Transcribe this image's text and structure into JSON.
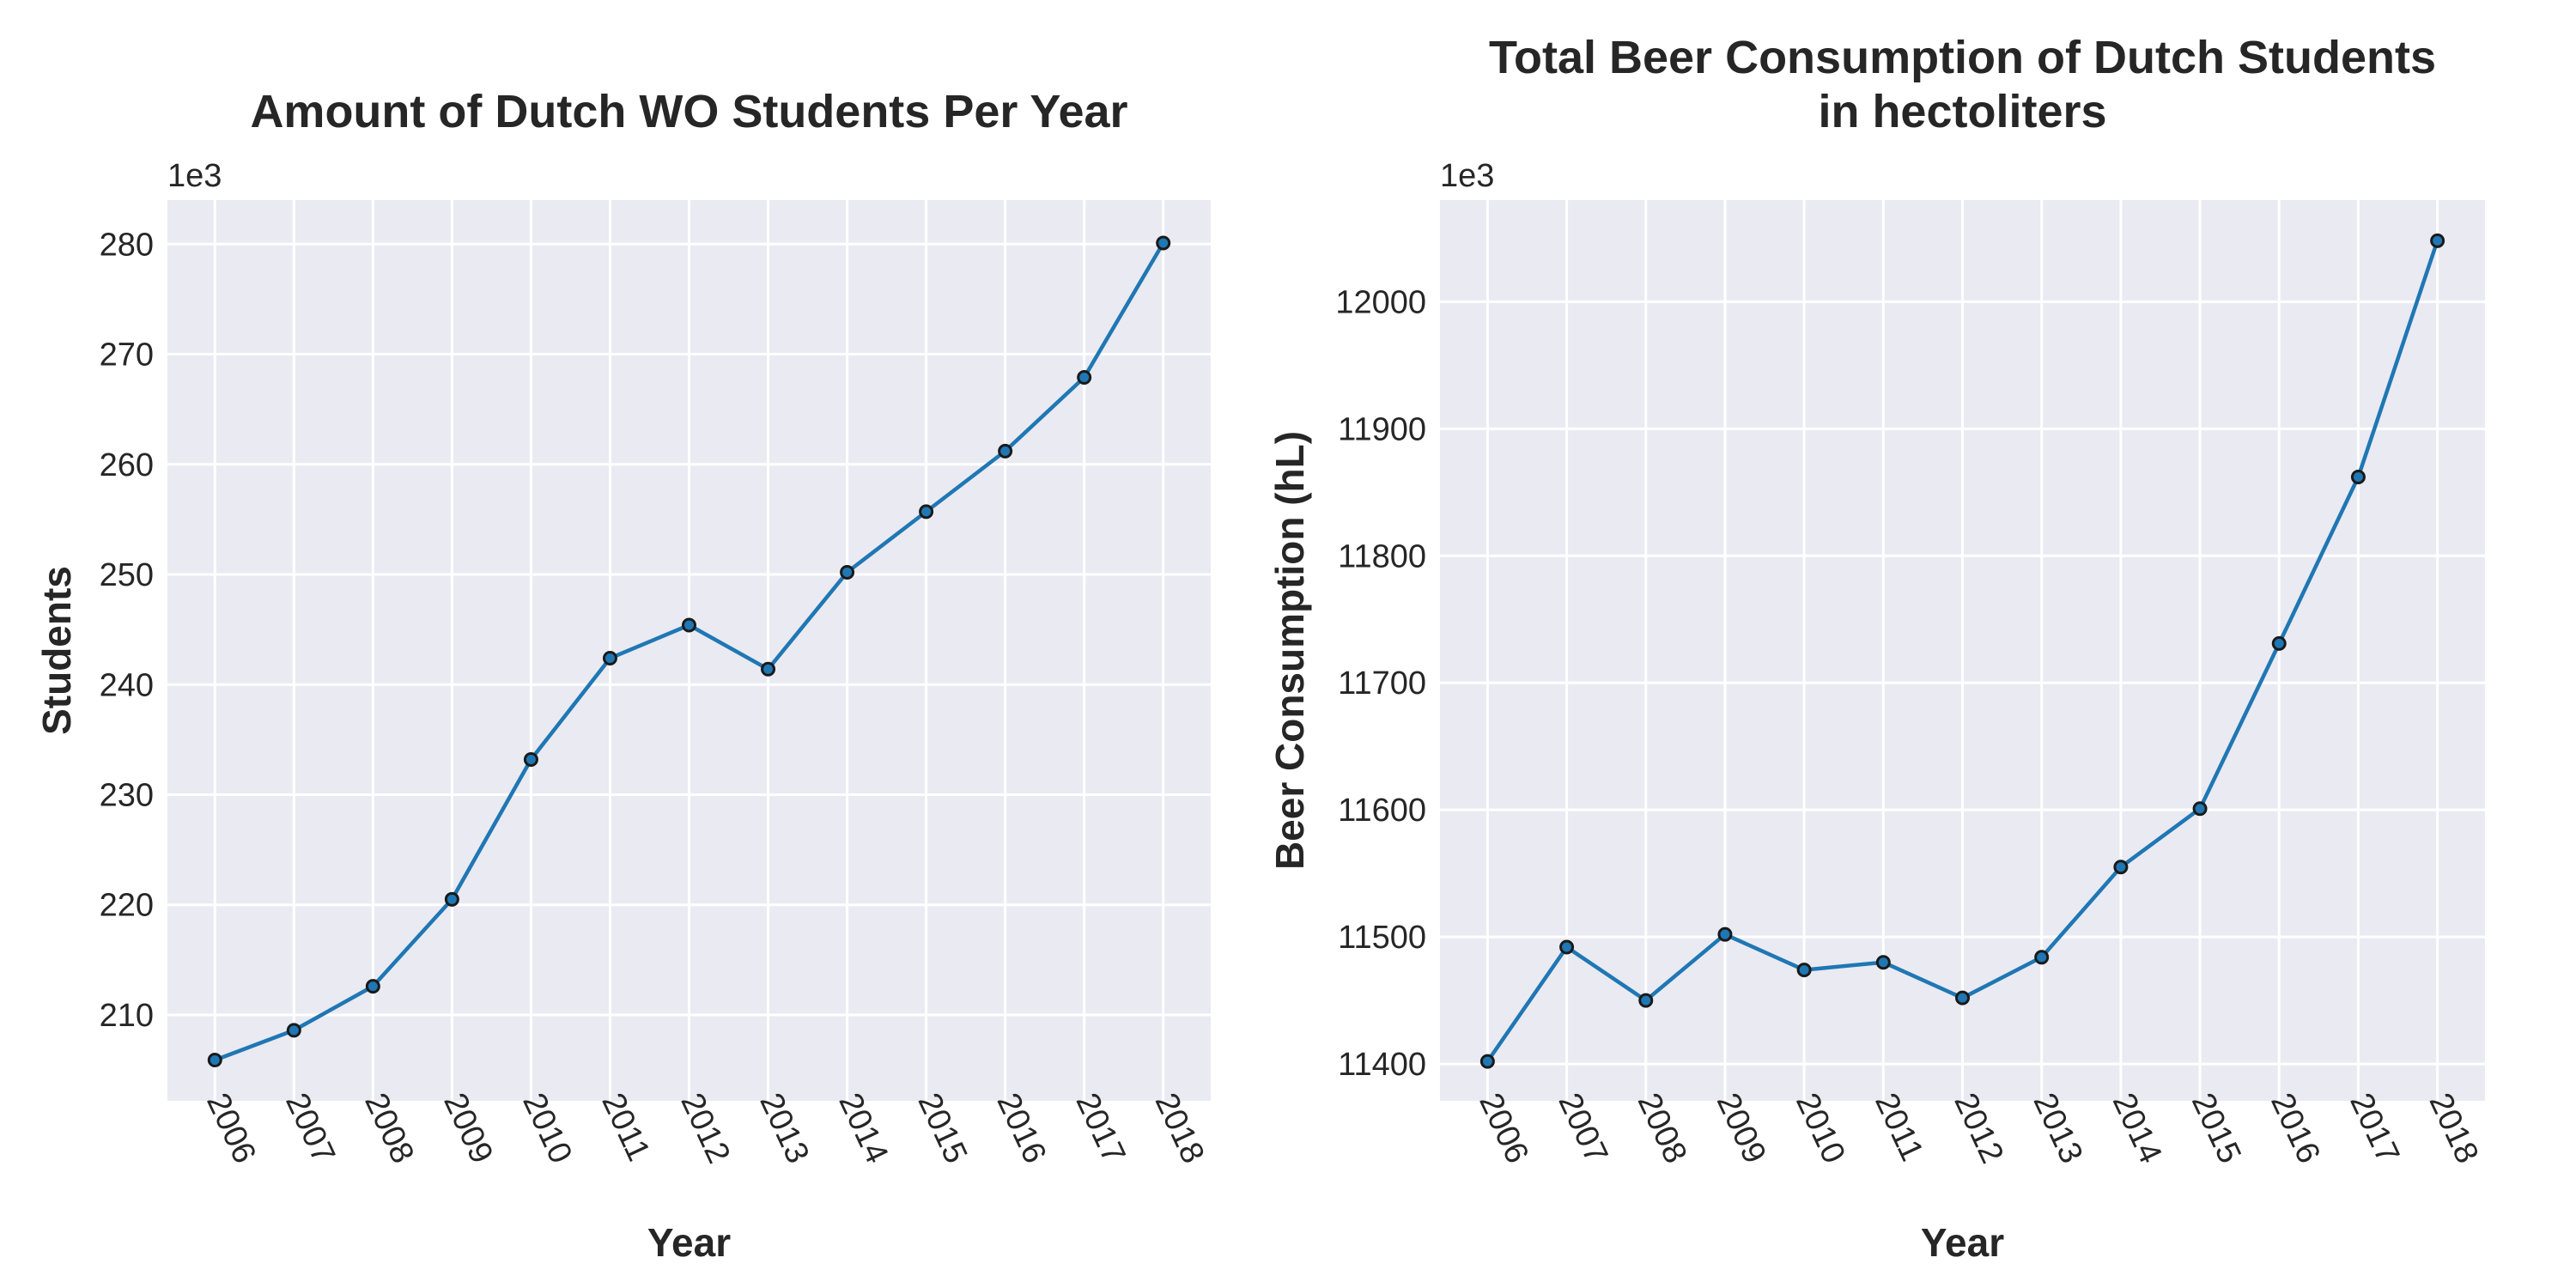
{
  "chart_data": [
    {
      "type": "line",
      "title": [
        "Amount of Dutch WO Students Per Year"
      ],
      "xlabel": "Year",
      "ylabel": "Students",
      "offset_label": "1e3",
      "x": [
        "2006",
        "2007",
        "2008",
        "2009",
        "2010",
        "2011",
        "2012",
        "2013",
        "2014",
        "2015",
        "2016",
        "2017",
        "2018"
      ],
      "values": [
        205.9,
        208.6,
        212.6,
        220.5,
        233.2,
        242.4,
        245.4,
        241.4,
        250.2,
        255.7,
        261.2,
        267.9,
        280.1
      ],
      "ylim": [
        202.2,
        284.0
      ],
      "yticks": [
        210,
        220,
        230,
        240,
        250,
        260,
        270,
        280
      ],
      "grid": true,
      "color": "#1f77b4",
      "background": "#eaeaf2"
    },
    {
      "type": "line",
      "title": [
        "Total Beer Consumption of Dutch Students",
        "in hectoliters"
      ],
      "xlabel": "Year",
      "ylabel": "Beer Consumption (hL)",
      "offset_label": "1e3",
      "x": [
        "2006",
        "2007",
        "2008",
        "2009",
        "2010",
        "2011",
        "2012",
        "2013",
        "2014",
        "2015",
        "2016",
        "2017",
        "2018"
      ],
      "values": [
        11402,
        11492,
        11450,
        11502,
        11474,
        11480,
        11452,
        11484,
        11555,
        11601,
        11731,
        11862,
        12048
      ],
      "ylim": [
        11371,
        12080
      ],
      "yticks": [
        11400,
        11500,
        11600,
        11700,
        11800,
        11900,
        12000
      ],
      "grid": true,
      "color": "#1f77b4",
      "background": "#eaeaf2"
    }
  ]
}
